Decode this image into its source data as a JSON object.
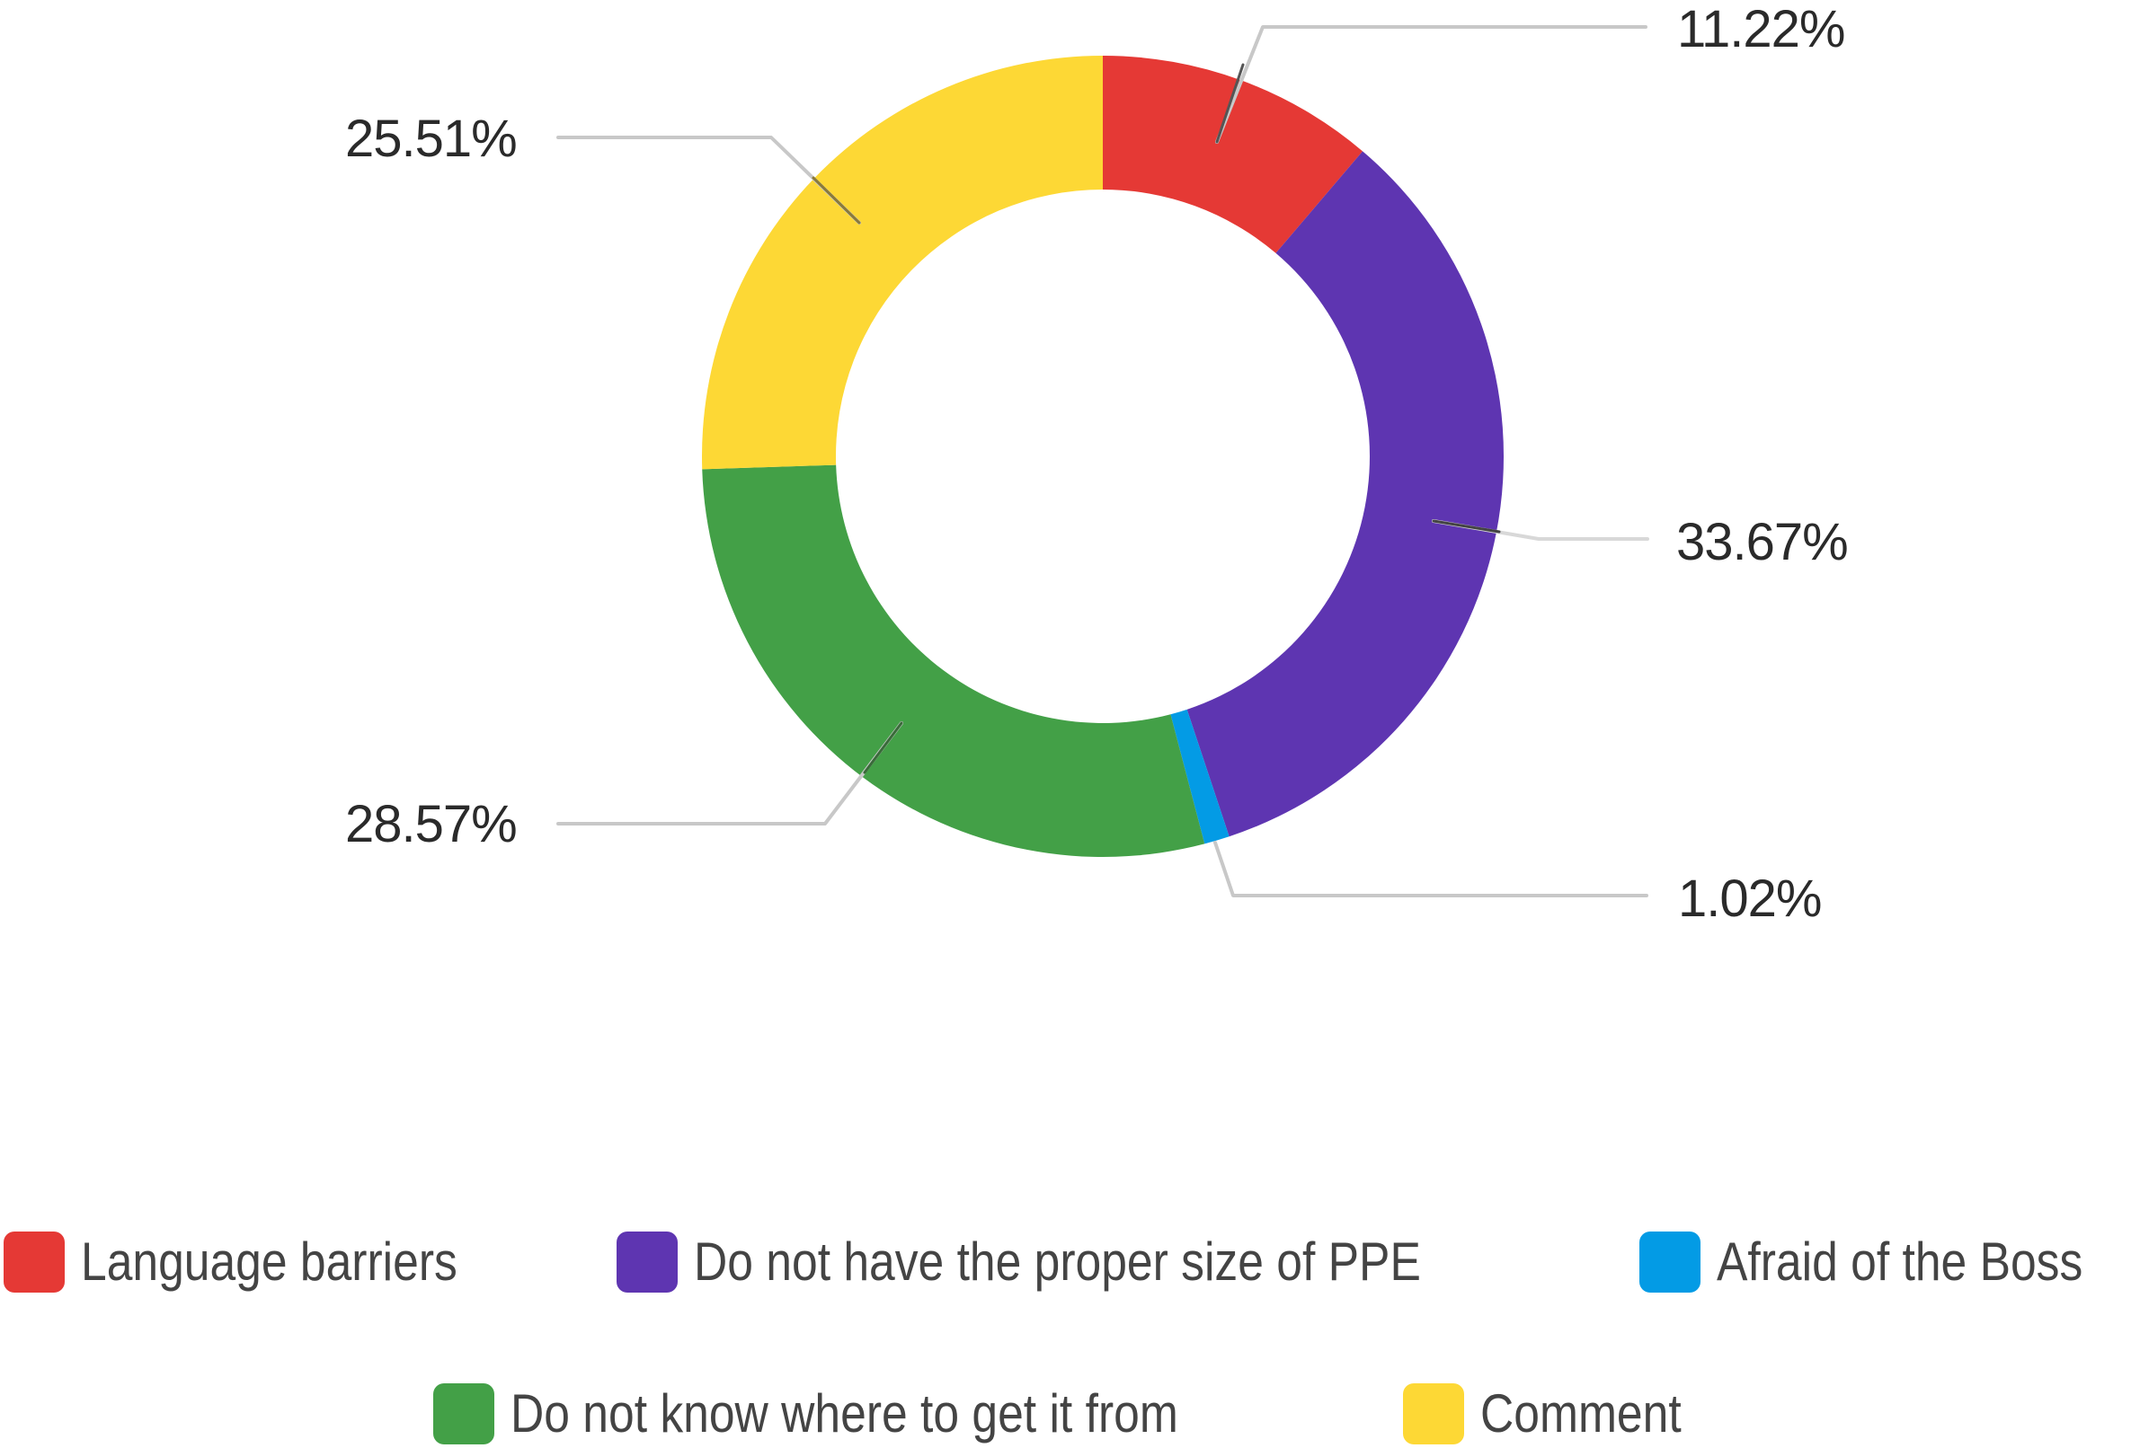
{
  "chart_data": {
    "type": "pie",
    "subtype": "donut",
    "title": "",
    "start_angle": "12 o'clock, clockwise",
    "categories": [
      "Language barriers",
      "Do not have the proper size of PPE",
      "Afraid of the Boss",
      "Do not know where to get it from",
      "Comment"
    ],
    "values": [
      11.22,
      33.67,
      1.02,
      28.57,
      25.51
    ],
    "value_labels": [
      "11.22%",
      "33.67%",
      "1.02%",
      "28.57%",
      "25.51%"
    ],
    "colors": [
      "#E53935",
      "#5E35B1",
      "#039BE5",
      "#43A047",
      "#FDD835"
    ],
    "unit": "%",
    "legend_position": "bottom"
  },
  "labels": {
    "language_barriers": "11.22%",
    "proper_size_ppe": "33.67%",
    "afraid_of_boss": "1.02%",
    "where_to_get": "28.57%",
    "comment": "25.51%"
  },
  "legend": {
    "items": [
      {
        "label": "Language barriers",
        "color": "#E53935"
      },
      {
        "label": "Do not have the proper size of PPE",
        "color": "#5E35B1"
      },
      {
        "label": "Afraid of the Boss",
        "color": "#039BE5"
      },
      {
        "label": "Do not know where to get it from",
        "color": "#43A047"
      },
      {
        "label": "Comment",
        "color": "#FDD835"
      }
    ]
  }
}
